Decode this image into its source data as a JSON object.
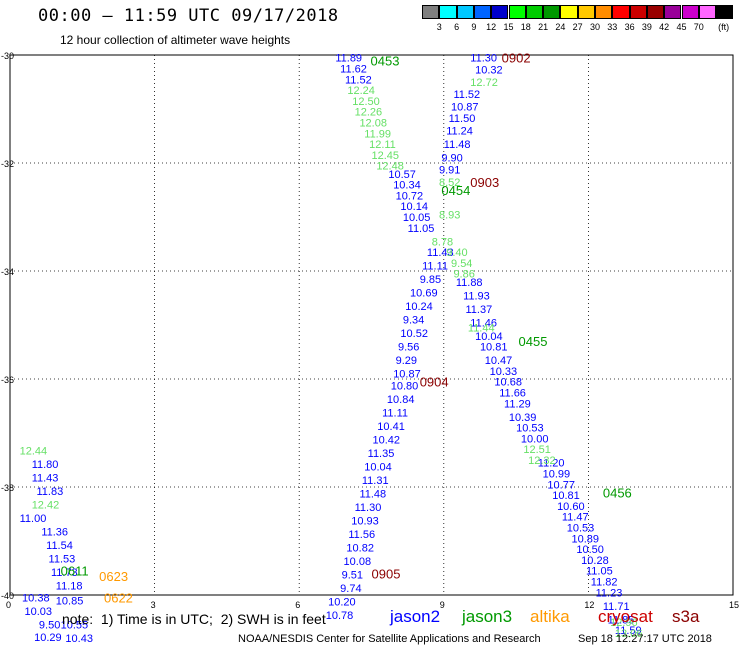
{
  "header": {
    "title": "00:00 – 11:59 UTC 09/17/2018",
    "subtitle": "12 hour collection of altimeter wave heights"
  },
  "colorbar": {
    "labels": [
      "3",
      "6",
      "9",
      "12",
      "15",
      "18",
      "21",
      "24",
      "27",
      "30",
      "33",
      "36",
      "39",
      "42",
      "45",
      "70"
    ],
    "unit": "(ft)",
    "colors": [
      "#7f7f7f",
      "#00ffff",
      "#00c8ff",
      "#0064ff",
      "#0000cc",
      "#00ff00",
      "#00cc00",
      "#009900",
      "#ffff00",
      "#ffc800",
      "#ff8c00",
      "#ff0000",
      "#cc0000",
      "#990000",
      "#990099",
      "#cc00cc",
      "#ff66ff",
      "#000000"
    ]
  },
  "footer": {
    "note": "note:  1) Time is in UTC;  2) SWH is in feet",
    "legend": [
      {
        "label": "jason2",
        "color": "#0000ff"
      },
      {
        "label": "jason3",
        "color": "#009900"
      },
      {
        "label": "altika",
        "color": "#ff9900"
      },
      {
        "label": "cryosat",
        "color": "#cc0000"
      },
      {
        "label": "s3a",
        "color": "#8b0000"
      }
    ],
    "credit": "NOAA/NESDIS Center for Satellite Applications and Research",
    "stamp": "Sep 18 12:27:17 UTC 2018"
  },
  "chart_data": {
    "type": "scatter",
    "title": "",
    "xlabel": "",
    "ylabel": "",
    "xlim": [
      0,
      15
    ],
    "ylim": [
      -40,
      -30
    ],
    "xticks": [
      "0",
      "3",
      "6",
      "9",
      "12",
      "15"
    ],
    "yticks": [
      "-30",
      "-32",
      "-34",
      "-36",
      "-38",
      "-40"
    ],
    "grid": true,
    "time_labels": [
      {
        "text": "0453",
        "x": 7.48,
        "y": -30.1,
        "color": "#009900"
      },
      {
        "text": "0902",
        "x": 10.2,
        "y": -30.05,
        "color": "#8b0000"
      },
      {
        "text": "0903",
        "x": 9.55,
        "y": -32.35,
        "color": "#8b0000"
      },
      {
        "text": "0454",
        "x": 8.95,
        "y": -32.5,
        "color": "#009900"
      },
      {
        "text": "0455",
        "x": 10.55,
        "y": -35.3,
        "color": "#009900"
      },
      {
        "text": "0904",
        "x": 8.5,
        "y": -36.05,
        "color": "#8b0000"
      },
      {
        "text": "0456",
        "x": 12.3,
        "y": -38.1,
        "color": "#009900"
      },
      {
        "text": "0905",
        "x": 7.5,
        "y": -39.6,
        "color": "#8b0000"
      },
      {
        "text": "0623",
        "x": 1.85,
        "y": -39.65,
        "color": "#ff9900"
      },
      {
        "text": "0622",
        "x": 1.95,
        "y": -40.05,
        "color": "#ff9900"
      },
      {
        "text": "0611",
        "x": 1.05,
        "y": -39.55,
        "color": "#009900"
      }
    ],
    "series": [
      {
        "name": "jason2",
        "color": "#0000ff",
        "points": [
          {
            "x": 9.55,
            "y": -30.05,
            "v": "11.30"
          },
          {
            "x": 9.65,
            "y": -30.27,
            "v": "10.32"
          },
          {
            "x": 9.2,
            "y": -30.72,
            "v": "11.52"
          },
          {
            "x": 9.15,
            "y": -30.95,
            "v": "10.87"
          },
          {
            "x": 9.1,
            "y": -31.17,
            "v": "11.50"
          },
          {
            "x": 9.05,
            "y": -31.4,
            "v": "11.24"
          },
          {
            "x": 9.0,
            "y": -31.65,
            "v": "11.48"
          },
          {
            "x": 8.95,
            "y": -31.9,
            "v": "9.90"
          },
          {
            "x": 8.9,
            "y": -32.12,
            "v": "9.91"
          },
          {
            "x": 8.65,
            "y": -33.65,
            "v": "11.43"
          },
          {
            "x": 8.55,
            "y": -33.9,
            "v": "11.11"
          },
          {
            "x": 8.5,
            "y": -34.15,
            "v": "9.85"
          },
          {
            "x": 8.3,
            "y": -34.4,
            "v": "10.69"
          },
          {
            "x": 8.2,
            "y": -34.65,
            "v": "10.24"
          },
          {
            "x": 8.15,
            "y": -34.9,
            "v": "9.34"
          },
          {
            "x": 8.1,
            "y": -35.15,
            "v": "10.52"
          },
          {
            "x": 8.05,
            "y": -35.4,
            "v": "9.56"
          },
          {
            "x": 8.0,
            "y": -35.65,
            "v": "9.29"
          },
          {
            "x": 7.95,
            "y": -35.9,
            "v": "10.87"
          },
          {
            "x": 7.9,
            "y": -36.12,
            "v": "10.80"
          },
          {
            "x": 7.82,
            "y": -36.37,
            "v": "10.84"
          },
          {
            "x": 7.72,
            "y": -36.62,
            "v": "11.11"
          },
          {
            "x": 7.62,
            "y": -36.87,
            "v": "10.41"
          },
          {
            "x": 7.52,
            "y": -37.12,
            "v": "10.42"
          },
          {
            "x": 7.42,
            "y": -37.37,
            "v": "11.35"
          },
          {
            "x": 7.35,
            "y": -37.62,
            "v": "10.04"
          },
          {
            "x": 7.3,
            "y": -37.87,
            "v": "11.31"
          },
          {
            "x": 7.25,
            "y": -38.12,
            "v": "11.48"
          },
          {
            "x": 7.15,
            "y": -38.37,
            "v": "11.30"
          },
          {
            "x": 7.08,
            "y": -38.62,
            "v": "10.93"
          },
          {
            "x": 7.02,
            "y": -38.87,
            "v": "11.56"
          },
          {
            "x": 6.98,
            "y": -39.12,
            "v": "10.82"
          },
          {
            "x": 6.92,
            "y": -39.37,
            "v": "10.08"
          },
          {
            "x": 6.88,
            "y": -39.62,
            "v": "9.51"
          },
          {
            "x": 6.85,
            "y": -39.87,
            "v": "9.74"
          },
          {
            "x": 6.6,
            "y": -40.12,
            "v": "10.20"
          },
          {
            "x": 6.55,
            "y": -40.37,
            "v": "10.78"
          },
          {
            "x": 0.45,
            "y": -37.57,
            "v": "11.80"
          },
          {
            "x": 0.45,
            "y": -37.82,
            "v": "11.43"
          },
          {
            "x": 0.55,
            "y": -38.07,
            "v": "11.83"
          },
          {
            "x": 0.2,
            "y": -38.57,
            "v": "11.00"
          },
          {
            "x": 0.65,
            "y": -38.82,
            "v": "11.36"
          },
          {
            "x": 0.75,
            "y": -39.07,
            "v": "11.54"
          },
          {
            "x": 0.8,
            "y": -39.32,
            "v": "11.53"
          },
          {
            "x": 0.85,
            "y": -39.57,
            "v": "11.73"
          },
          {
            "x": 0.95,
            "y": -39.82,
            "v": "11.18"
          },
          {
            "x": 0.25,
            "y": -40.05,
            "v": "10.38"
          },
          {
            "x": 0.95,
            "y": -40.1,
            "v": "10.85"
          },
          {
            "x": 0.3,
            "y": -40.3,
            "v": "10.03"
          },
          {
            "x": 0.6,
            "y": -40.55,
            "v": "9.50"
          },
          {
            "x": 1.05,
            "y": -40.55,
            "v": "10.55"
          },
          {
            "x": 0.5,
            "y": -40.78,
            "v": "10.29"
          },
          {
            "x": 1.15,
            "y": -40.8,
            "v": "10.43"
          },
          {
            "x": 6.75,
            "y": -30.05,
            "v": "11.89"
          },
          {
            "x": 6.85,
            "y": -30.25,
            "v": "11.62"
          },
          {
            "x": 6.95,
            "y": -30.45,
            "v": "11.52"
          },
          {
            "x": 7.85,
            "y": -32.2,
            "v": "10.57"
          },
          {
            "x": 7.95,
            "y": -32.4,
            "v": "10.34"
          },
          {
            "x": 8.0,
            "y": -32.6,
            "v": "10.72"
          },
          {
            "x": 8.1,
            "y": -32.8,
            "v": "10.14"
          },
          {
            "x": 8.15,
            "y": -33.0,
            "v": "10.05"
          },
          {
            "x": 8.25,
            "y": -33.2,
            "v": "11.05"
          },
          {
            "x": 9.25,
            "y": -34.2,
            "v": "11.88"
          },
          {
            "x": 9.4,
            "y": -34.45,
            "v": "11.93"
          },
          {
            "x": 9.45,
            "y": -34.7,
            "v": "11.37"
          },
          {
            "x": 9.55,
            "y": -34.95,
            "v": "11.46"
          },
          {
            "x": 9.65,
            "y": -35.2,
            "v": "10.04"
          },
          {
            "x": 9.75,
            "y": -35.4,
            "v": "10.81"
          },
          {
            "x": 9.85,
            "y": -35.65,
            "v": "10.47"
          },
          {
            "x": 9.95,
            "y": -35.85,
            "v": "10.33"
          },
          {
            "x": 10.05,
            "y": -36.05,
            "v": "10.68"
          },
          {
            "x": 10.15,
            "y": -36.25,
            "v": "11.66"
          },
          {
            "x": 10.25,
            "y": -36.45,
            "v": "11.29"
          },
          {
            "x": 10.35,
            "y": -36.7,
            "v": "10.39"
          },
          {
            "x": 10.5,
            "y": -36.9,
            "v": "10.53"
          },
          {
            "x": 10.6,
            "y": -37.1,
            "v": "10.00"
          },
          {
            "x": 10.95,
            "y": -37.55,
            "v": "11.20"
          },
          {
            "x": 11.05,
            "y": -37.75,
            "v": "10.99"
          },
          {
            "x": 11.15,
            "y": -37.95,
            "v": "10.77"
          },
          {
            "x": 11.25,
            "y": -38.15,
            "v": "10.81"
          },
          {
            "x": 11.35,
            "y": -38.35,
            "v": "10.60"
          },
          {
            "x": 11.45,
            "y": -38.55,
            "v": "11.47"
          },
          {
            "x": 11.55,
            "y": -38.75,
            "v": "10.53"
          },
          {
            "x": 11.65,
            "y": -38.95,
            "v": "10.89"
          },
          {
            "x": 11.75,
            "y": -39.15,
            "v": "10.50"
          },
          {
            "x": 11.85,
            "y": -39.35,
            "v": "10.28"
          },
          {
            "x": 11.95,
            "y": -39.55,
            "v": "11.05"
          },
          {
            "x": 12.05,
            "y": -39.75,
            "v": "11.82"
          },
          {
            "x": 12.15,
            "y": -39.95,
            "v": "11.23"
          },
          {
            "x": 12.3,
            "y": -40.2,
            "v": "11.71"
          },
          {
            "x": 12.4,
            "y": -40.45,
            "v": "11.85"
          },
          {
            "x": 12.55,
            "y": -40.65,
            "v": "11.59"
          }
        ]
      },
      {
        "name": "jason3",
        "color": "#66e066",
        "points": [
          {
            "x": 9.55,
            "y": -30.5,
            "v": "12.72"
          },
          {
            "x": 0.2,
            "y": -37.32,
            "v": "12.44"
          },
          {
            "x": 0.45,
            "y": -38.32,
            "v": "12.42"
          },
          {
            "x": 7.0,
            "y": -30.65,
            "v": "12.24"
          },
          {
            "x": 7.1,
            "y": -30.85,
            "v": "12.50"
          },
          {
            "x": 7.15,
            "y": -31.05,
            "v": "12.26"
          },
          {
            "x": 7.25,
            "y": -31.25,
            "v": "12.08"
          },
          {
            "x": 7.35,
            "y": -31.45,
            "v": "11.99"
          },
          {
            "x": 7.45,
            "y": -31.65,
            "v": "12.11"
          },
          {
            "x": 7.5,
            "y": -31.85,
            "v": "12.45"
          },
          {
            "x": 7.6,
            "y": -32.05,
            "v": "12.48"
          },
          {
            "x": 8.9,
            "y": -32.35,
            "v": "8.52"
          },
          {
            "x": 8.9,
            "y": -32.95,
            "v": "8.93"
          },
          {
            "x": 8.75,
            "y": -33.45,
            "v": "8.78"
          },
          {
            "x": 9.05,
            "y": -33.65,
            "v": "9.40"
          },
          {
            "x": 9.15,
            "y": -33.85,
            "v": "9.54"
          },
          {
            "x": 9.2,
            "y": -34.05,
            "v": "9.86"
          },
          {
            "x": 9.5,
            "y": -35.05,
            "v": "11.44"
          },
          {
            "x": 10.65,
            "y": -37.3,
            "v": "12.51"
          },
          {
            "x": 10.75,
            "y": -37.5,
            "v": "12.32"
          },
          {
            "x": 12.45,
            "y": -40.5,
            "v": "12.96"
          },
          {
            "x": 12.55,
            "y": -40.7,
            "v": "13.06"
          }
        ]
      }
    ]
  }
}
